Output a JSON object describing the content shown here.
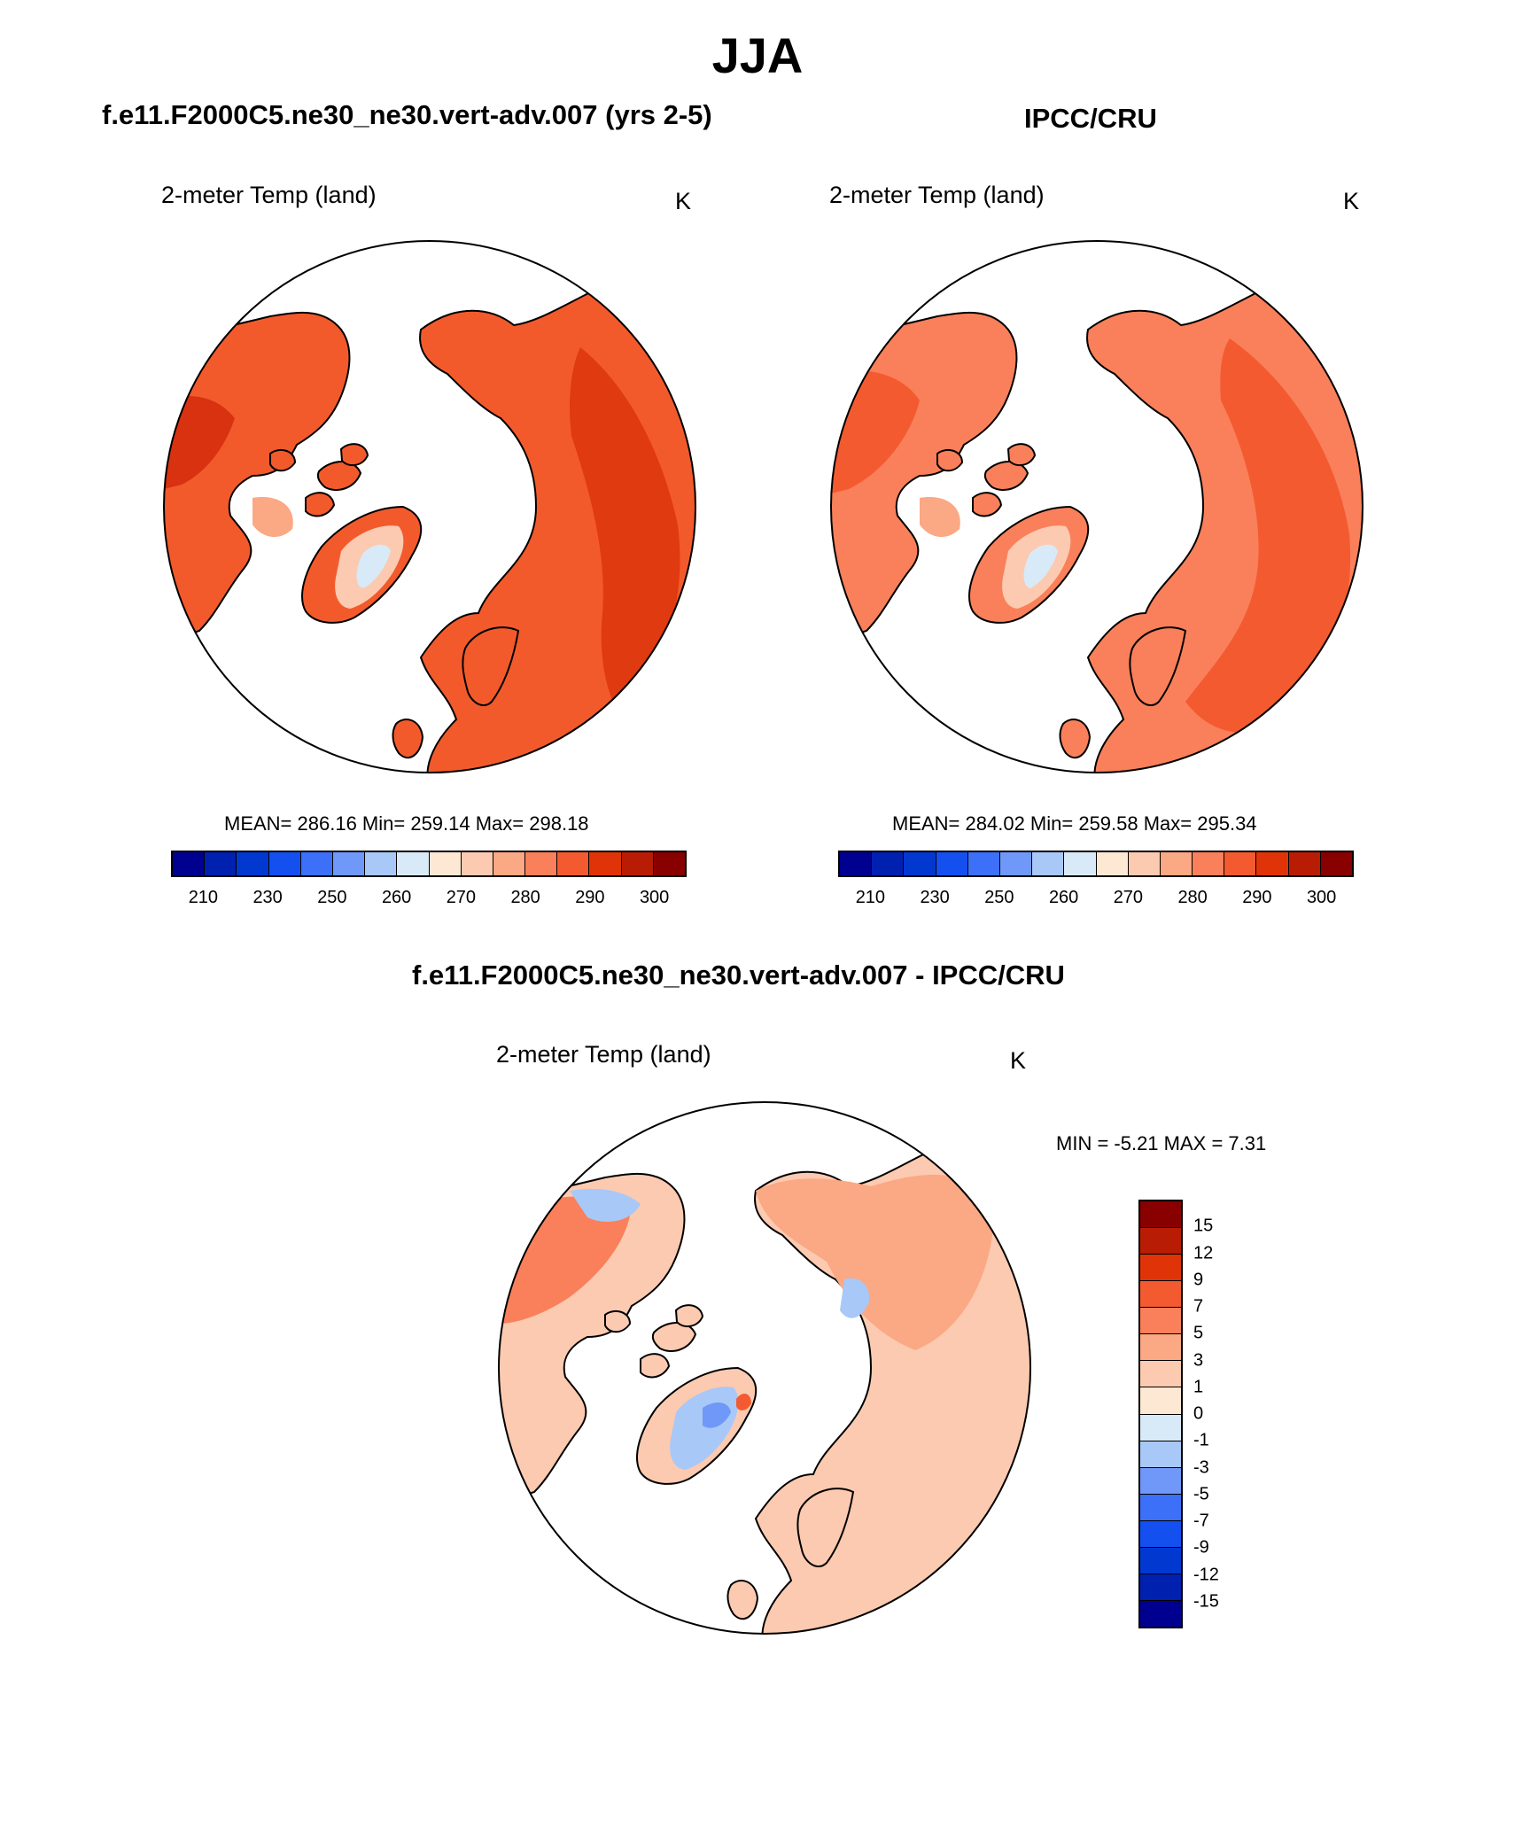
{
  "title": "JJA",
  "panels": {
    "model": {
      "title": "f.e11.F2000C5.ne30_ne30.vert-adv.007 (yrs 2-5)",
      "variable": "2-meter Temp (land)",
      "units": "K",
      "stats": "MEAN= 286.16  Min= 259.14  Max= 298.18"
    },
    "obs": {
      "title": "IPCC/CRU",
      "variable": "2-meter Temp (land)",
      "units": "K",
      "stats": "MEAN= 284.02  Min= 259.58  Max= 295.34"
    },
    "diff": {
      "title": "f.e11.F2000C5.ne30_ne30.vert-adv.007 - IPCC/CRU",
      "variable": "2-meter Temp (land)",
      "units": "K",
      "stats": "MIN =  -5.21 MAX =   7.31"
    }
  },
  "colorbar_abs": {
    "colors": [
      "#000090",
      "#0020b0",
      "#0038d0",
      "#1450f0",
      "#3c70f8",
      "#7098f8",
      "#a8c8f8",
      "#d8eaf8",
      "#fde8d4",
      "#fccab0",
      "#fba884",
      "#f9805a",
      "#f45a30",
      "#e03408",
      "#b81c04",
      "#880000"
    ],
    "ticks": [
      "210",
      "230",
      "250",
      "260",
      "270",
      "280",
      "290",
      "300"
    ]
  },
  "colorbar_diff": {
    "colors": [
      "#880000",
      "#b81c04",
      "#e03408",
      "#f45a30",
      "#f9805a",
      "#fba884",
      "#fccab0",
      "#fde8d4",
      "#d8eaf8",
      "#a8c8f8",
      "#7098f8",
      "#3c70f8",
      "#1450f0",
      "#0038d0",
      "#0020b0",
      "#000090"
    ],
    "ticks": [
      "15",
      "12",
      "9",
      "7",
      "5",
      "3",
      "1",
      "0",
      "-1",
      "-3",
      "-5",
      "-7",
      "-9",
      "-12",
      "-15"
    ]
  }
}
